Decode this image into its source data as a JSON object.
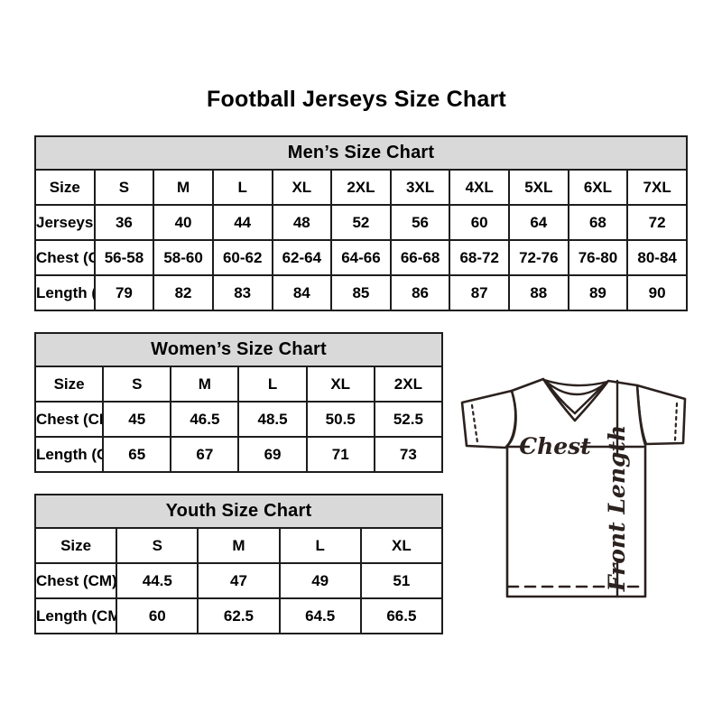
{
  "page": {
    "title": "Football Jerseys Size Chart"
  },
  "tables": [
    {
      "id": "men",
      "header": "Men’s Size Chart",
      "columns": [
        "Size",
        "S",
        "M",
        "L",
        "XL",
        "2XL",
        "3XL",
        "4XL",
        "5XL",
        "6XL",
        "7XL"
      ],
      "rows": [
        {
          "label": "Jerseys Size",
          "values": [
            "36",
            "40",
            "44",
            "48",
            "52",
            "56",
            "60",
            "64",
            "68",
            "72"
          ]
        },
        {
          "label": "Chest (CM)",
          "values": [
            "56-58",
            "58-60",
            "60-62",
            "62-64",
            "64-66",
            "66-68",
            "68-72",
            "72-76",
            "76-80",
            "80-84"
          ]
        },
        {
          "label": "Length (CM)",
          "values": [
            "79",
            "82",
            "83",
            "84",
            "85",
            "86",
            "87",
            "88",
            "89",
            "90"
          ]
        }
      ]
    },
    {
      "id": "women",
      "header": "Women’s Size Chart",
      "columns": [
        "Size",
        "S",
        "M",
        "L",
        "XL",
        "2XL"
      ],
      "rows": [
        {
          "label": "Chest (CM)",
          "values": [
            "45",
            "46.5",
            "48.5",
            "50.5",
            "52.5"
          ]
        },
        {
          "label": "Length (CM)",
          "values": [
            "65",
            "67",
            "69",
            "71",
            "73"
          ]
        }
      ]
    },
    {
      "id": "youth",
      "header": "Youth Size Chart",
      "columns": [
        "Size",
        "S",
        "M",
        "L",
        "XL"
      ],
      "rows": [
        {
          "label": "Chest (CM)",
          "values": [
            "44.5",
            "47",
            "49",
            "51"
          ]
        },
        {
          "label": "Length (CM)",
          "values": [
            "60",
            "62.5",
            "64.5",
            "66.5"
          ]
        }
      ]
    }
  ],
  "diagram": {
    "chest_label": "Chest",
    "front_length_label": "Front Length"
  },
  "colors": {
    "header_bg": "#d9d9d9",
    "table_border": "#1d1d1d",
    "text": "#000000",
    "sketch_stroke": "#2b211e"
  }
}
